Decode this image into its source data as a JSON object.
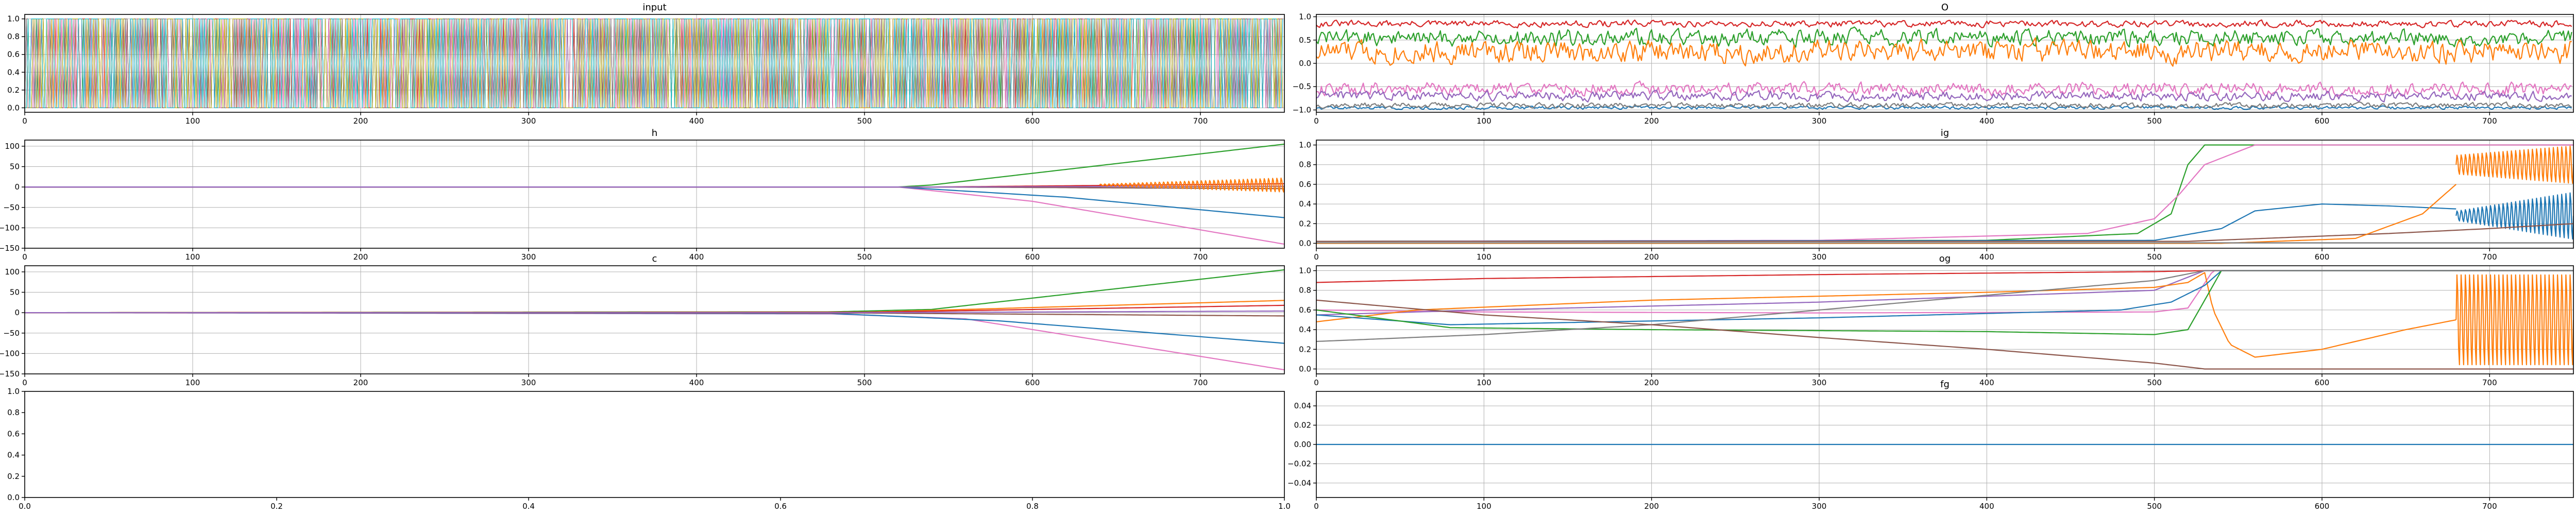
{
  "figure": {
    "background": "#ffffff",
    "series_colors": [
      "#1f77b4",
      "#ff7f0e",
      "#2ca02c",
      "#d62728",
      "#9467bd",
      "#8c564b",
      "#e377c2",
      "#7f7f7f",
      "#bcbd22",
      "#17becf"
    ]
  },
  "chart_data": [
    {
      "id": "input",
      "type": "line",
      "title": "input",
      "xlabel": "",
      "ylabel": "",
      "xlim": [
        0,
        750
      ],
      "ylim": [
        -0.05,
        1.05
      ],
      "xticks": [
        0,
        100,
        200,
        300,
        400,
        500,
        600,
        700
      ],
      "yticks": [
        0.0,
        0.2,
        0.4,
        0.6,
        0.8,
        1.0
      ],
      "xtick_labels": [
        "0",
        "100",
        "200",
        "300",
        "400",
        "500",
        "600",
        "700"
      ],
      "ytick_labels": [
        "0.0",
        "0.2",
        "0.4",
        "0.6",
        "0.8",
        "1.0"
      ],
      "grid": true,
      "series": [
        {
          "kind": "binary",
          "color": "#1f77b4",
          "seed": 11,
          "n": 750
        },
        {
          "kind": "binary",
          "color": "#ff7f0e",
          "seed": 12,
          "n": 750
        },
        {
          "kind": "binary",
          "color": "#2ca02c",
          "seed": 13,
          "n": 750
        },
        {
          "kind": "binary",
          "color": "#d62728",
          "seed": 14,
          "n": 750
        },
        {
          "kind": "binary",
          "color": "#9467bd",
          "seed": 15,
          "n": 750
        },
        {
          "kind": "binary",
          "color": "#8c564b",
          "seed": 16,
          "n": 750
        },
        {
          "kind": "binary",
          "color": "#e377c2",
          "seed": 17,
          "n": 750
        },
        {
          "kind": "binary",
          "color": "#7f7f7f",
          "seed": 18,
          "n": 750
        },
        {
          "kind": "binary",
          "color": "#bcbd22",
          "seed": 19,
          "n": 750
        },
        {
          "kind": "binary",
          "color": "#17becf",
          "seed": 20,
          "n": 750
        }
      ]
    },
    {
      "id": "O",
      "type": "line",
      "title": "O",
      "xlabel": "",
      "ylabel": "",
      "xlim": [
        0,
        750
      ],
      "ylim": [
        -1.05,
        1.05
      ],
      "xticks": [
        0,
        100,
        200,
        300,
        400,
        500,
        600,
        700
      ],
      "yticks": [
        -1.0,
        -0.5,
        0.0,
        0.5,
        1.0
      ],
      "xtick_labels": [
        "0",
        "100",
        "200",
        "300",
        "400",
        "500",
        "600",
        "700"
      ],
      "ytick_labels": [
        "−1.0",
        "−0.5",
        "0.0",
        "0.5",
        "1.0"
      ],
      "grid": true,
      "series": [
        {
          "kind": "noise",
          "color": "#d62728",
          "base": 0.85,
          "amp": 0.1,
          "seed": 31,
          "n": 750
        },
        {
          "kind": "noise",
          "color": "#2ca02c",
          "base": 0.55,
          "amp": 0.25,
          "seed": 32,
          "n": 750
        },
        {
          "kind": "noise",
          "color": "#ff7f0e",
          "base": 0.25,
          "amp": 0.35,
          "seed": 33,
          "n": 750
        },
        {
          "kind": "noise",
          "color": "#e377c2",
          "base": -0.55,
          "amp": 0.2,
          "seed": 34,
          "n": 750
        },
        {
          "kind": "noise",
          "color": "#9467bd",
          "base": -0.7,
          "amp": 0.15,
          "seed": 35,
          "n": 750
        },
        {
          "kind": "noise",
          "color": "#1f77b4",
          "base": -0.95,
          "amp": 0.05,
          "seed": 36,
          "n": 750
        },
        {
          "kind": "noise",
          "color": "#7f7f7f",
          "base": -0.9,
          "amp": 0.08,
          "seed": 37,
          "n": 750
        }
      ]
    },
    {
      "id": "h",
      "type": "line",
      "title": "h",
      "xlabel": "",
      "ylabel": "",
      "xlim": [
        0,
        750
      ],
      "ylim": [
        -150,
        115
      ],
      "xticks": [
        0,
        100,
        200,
        300,
        400,
        500,
        600,
        700
      ],
      "yticks": [
        -150,
        -100,
        -50,
        0,
        50,
        100
      ],
      "xtick_labels": [
        "0",
        "100",
        "200",
        "300",
        "400",
        "500",
        "600",
        "700"
      ],
      "ytick_labels": [
        "−150",
        "−100",
        "−50",
        "0",
        "50",
        "100"
      ],
      "grid": true,
      "series": [
        {
          "kind": "ramp",
          "color": "#2ca02c",
          "x": [
            0,
            520,
            540,
            750
          ],
          "y": [
            0,
            0,
            5,
            105
          ]
        },
        {
          "kind": "ramp",
          "color": "#e377c2",
          "x": [
            0,
            520,
            600,
            750
          ],
          "y": [
            0,
            0,
            -35,
            -140
          ]
        },
        {
          "kind": "ramp",
          "color": "#1f77b4",
          "x": [
            0,
            520,
            620,
            750
          ],
          "y": [
            0,
            0,
            -25,
            -75
          ]
        },
        {
          "kind": "ramp",
          "color": "#d62728",
          "x": [
            0,
            540,
            750
          ],
          "y": [
            0,
            0,
            8
          ]
        },
        {
          "kind": "ramp",
          "color": "#8c564b",
          "x": [
            0,
            540,
            750
          ],
          "y": [
            0,
            0,
            -4
          ]
        },
        {
          "kind": "ramp",
          "color": "#9467bd",
          "x": [
            0,
            540,
            750
          ],
          "y": [
            0,
            0,
            2
          ]
        },
        {
          "kind": "osc",
          "color": "#ff7f0e",
          "start": 640,
          "end": 750,
          "base": 5,
          "amp_start": 2,
          "amp_end": 18,
          "period": 2.5
        }
      ]
    },
    {
      "id": "ig",
      "type": "line",
      "title": "ig",
      "xlabel": "",
      "ylabel": "",
      "xlim": [
        0,
        750
      ],
      "ylim": [
        -0.05,
        1.05
      ],
      "xticks": [
        0,
        100,
        200,
        300,
        400,
        500,
        600,
        700
      ],
      "yticks": [
        0.0,
        0.2,
        0.4,
        0.6,
        0.8,
        1.0
      ],
      "xtick_labels": [
        "0",
        "100",
        "200",
        "300",
        "400",
        "500",
        "600",
        "700"
      ],
      "ytick_labels": [
        "0.0",
        "0.2",
        "0.4",
        "0.6",
        "0.8",
        "1.0"
      ],
      "grid": true,
      "series": [
        {
          "kind": "ramp",
          "color": "#2ca02c",
          "x": [
            0,
            400,
            490,
            510,
            520,
            530,
            750
          ],
          "y": [
            0.02,
            0.03,
            0.1,
            0.3,
            0.8,
            1.0,
            1.0
          ]
        },
        {
          "kind": "ramp",
          "color": "#e377c2",
          "x": [
            0,
            300,
            460,
            500,
            515,
            530,
            560,
            750
          ],
          "y": [
            0.02,
            0.03,
            0.1,
            0.25,
            0.5,
            0.8,
            1.0,
            1.0
          ]
        },
        {
          "kind": "ramp",
          "color": "#1f77b4",
          "x": [
            0,
            500,
            540,
            560,
            600,
            640,
            680
          ],
          "y": [
            0.02,
            0.03,
            0.15,
            0.33,
            0.4,
            0.38,
            0.35
          ]
        },
        {
          "kind": "osc",
          "color": "#1f77b4",
          "start": 680,
          "end": 750,
          "base": 0.28,
          "amp_start": 0.05,
          "amp_end": 0.25,
          "period": 2.5
        },
        {
          "kind": "ramp",
          "color": "#8c564b",
          "x": [
            0,
            520,
            580,
            640,
            700,
            750
          ],
          "y": [
            0.02,
            0.02,
            0.06,
            0.1,
            0.15,
            0.2
          ]
        },
        {
          "kind": "ramp",
          "color": "#ff7f0e",
          "x": [
            0,
            540,
            620,
            660,
            680
          ],
          "y": [
            0.0,
            0.0,
            0.05,
            0.3,
            0.6
          ]
        },
        {
          "kind": "osc",
          "color": "#ff7f0e",
          "start": 680,
          "end": 750,
          "base": 0.8,
          "amp_start": 0.1,
          "amp_end": 0.2,
          "period": 2.5
        },
        {
          "kind": "ramp",
          "color": "#7f7f7f",
          "x": [
            0,
            750
          ],
          "y": [
            0.005,
            0.005
          ]
        }
      ]
    },
    {
      "id": "c",
      "type": "line",
      "title": "c",
      "xlabel": "",
      "ylabel": "",
      "xlim": [
        0,
        750
      ],
      "ylim": [
        -150,
        115
      ],
      "xticks": [
        0,
        100,
        200,
        300,
        400,
        500,
        600,
        700
      ],
      "yticks": [
        -150,
        -100,
        -50,
        0,
        50,
        100
      ],
      "xtick_labels": [
        "0",
        "100",
        "200",
        "300",
        "400",
        "500",
        "600",
        "700"
      ],
      "ytick_labels": [
        "−150",
        "−100",
        "−50",
        "0",
        "50",
        "100"
      ],
      "grid": true,
      "series": [
        {
          "kind": "ramp",
          "color": "#2ca02c",
          "x": [
            0,
            480,
            540,
            750
          ],
          "y": [
            0,
            2,
            8,
            105
          ]
        },
        {
          "kind": "ramp",
          "color": "#e377c2",
          "x": [
            0,
            480,
            560,
            750
          ],
          "y": [
            0,
            -3,
            -15,
            -140
          ]
        },
        {
          "kind": "ramp",
          "color": "#1f77b4",
          "x": [
            0,
            480,
            580,
            750
          ],
          "y": [
            0,
            -2,
            -20,
            -75
          ]
        },
        {
          "kind": "ramp",
          "color": "#ff7f0e",
          "x": [
            0,
            500,
            750
          ],
          "y": [
            0,
            1,
            30
          ]
        },
        {
          "kind": "ramp",
          "color": "#d62728",
          "x": [
            0,
            500,
            750
          ],
          "y": [
            0,
            1,
            18
          ]
        },
        {
          "kind": "ramp",
          "color": "#8c564b",
          "x": [
            0,
            500,
            750
          ],
          "y": [
            0,
            -1,
            -8
          ]
        },
        {
          "kind": "ramp",
          "color": "#9467bd",
          "x": [
            0,
            500,
            750
          ],
          "y": [
            0,
            0,
            4
          ]
        }
      ]
    },
    {
      "id": "og",
      "type": "line",
      "title": "og",
      "xlabel": "",
      "ylabel": "",
      "xlim": [
        0,
        750
      ],
      "ylim": [
        -0.05,
        1.05
      ],
      "xticks": [
        0,
        100,
        200,
        300,
        400,
        500,
        600,
        700
      ],
      "yticks": [
        0.0,
        0.2,
        0.4,
        0.6,
        0.8,
        1.0
      ],
      "xtick_labels": [
        "0",
        "100",
        "200",
        "300",
        "400",
        "500",
        "600",
        "700"
      ],
      "ytick_labels": [
        "0.0",
        "0.2",
        "0.4",
        "0.6",
        "0.8",
        "1.0"
      ],
      "grid": true,
      "series": [
        {
          "kind": "ramp",
          "color": "#d62728",
          "x": [
            0,
            100,
            300,
            500,
            530,
            750
          ],
          "y": [
            0.88,
            0.92,
            0.96,
            0.99,
            1.0,
            1.0
          ]
        },
        {
          "kind": "ramp",
          "color": "#e377c2",
          "x": [
            0,
            100,
            300,
            500,
            520,
            535,
            750
          ],
          "y": [
            0.6,
            0.58,
            0.57,
            0.58,
            0.62,
            1.0,
            1.0
          ]
        },
        {
          "kind": "ramp",
          "color": "#9467bd",
          "x": [
            0,
            100,
            300,
            500,
            530,
            750
          ],
          "y": [
            0.55,
            0.6,
            0.68,
            0.8,
            1.0,
            1.0
          ]
        },
        {
          "kind": "ramp",
          "color": "#ff7f0e",
          "x": [
            0,
            60,
            200,
            400,
            500,
            520,
            530,
            535,
            545,
            560,
            600,
            650,
            680
          ],
          "y": [
            0.48,
            0.6,
            0.7,
            0.78,
            0.83,
            0.88,
            0.98,
            0.6,
            0.25,
            0.12,
            0.2,
            0.4,
            0.5
          ]
        },
        {
          "kind": "osc",
          "color": "#ff7f0e",
          "start": 680,
          "end": 750,
          "base": 0.5,
          "amp_start": 0.48,
          "amp_end": 0.48,
          "period": 2.5
        },
        {
          "kind": "ramp",
          "color": "#1f77b4",
          "x": [
            0,
            80,
            300,
            480,
            510,
            530,
            540,
            750
          ],
          "y": [
            0.55,
            0.45,
            0.52,
            0.6,
            0.68,
            0.85,
            1.0,
            1.0
          ]
        },
        {
          "kind": "ramp",
          "color": "#2ca02c",
          "x": [
            0,
            80,
            200,
            400,
            500,
            520,
            530,
            540,
            750
          ],
          "y": [
            0.6,
            0.42,
            0.4,
            0.38,
            0.35,
            0.4,
            0.7,
            1.0,
            1.0
          ]
        },
        {
          "kind": "ramp",
          "color": "#7f7f7f",
          "x": [
            0,
            100,
            200,
            300,
            400,
            500,
            530,
            750
          ],
          "y": [
            0.28,
            0.35,
            0.45,
            0.6,
            0.75,
            0.9,
            1.0,
            1.0
          ]
        },
        {
          "kind": "ramp",
          "color": "#8c564b",
          "x": [
            0,
            100,
            200,
            300,
            400,
            500,
            530,
            750
          ],
          "y": [
            0.7,
            0.55,
            0.45,
            0.32,
            0.2,
            0.06,
            0.0,
            0.0
          ]
        }
      ]
    },
    {
      "id": "empty",
      "type": "line",
      "title": "",
      "xlabel": "",
      "ylabel": "",
      "xlim": [
        0,
        1
      ],
      "ylim": [
        0,
        1
      ],
      "xticks": [
        0.0,
        0.2,
        0.4,
        0.6,
        0.8,
        1.0
      ],
      "yticks": [
        0.0,
        0.2,
        0.4,
        0.6,
        0.8,
        1.0
      ],
      "xtick_labels": [
        "0.0",
        "0.2",
        "0.4",
        "0.6",
        "0.8",
        "1.0"
      ],
      "ytick_labels": [
        "0.0",
        "0.2",
        "0.4",
        "0.6",
        "0.8",
        "1.0"
      ],
      "grid": false,
      "series": []
    },
    {
      "id": "fg",
      "type": "line",
      "title": "fg",
      "xlabel": "",
      "ylabel": "",
      "xlim": [
        0,
        750
      ],
      "ylim": [
        -0.055,
        0.055
      ],
      "xticks": [
        0,
        100,
        200,
        300,
        400,
        500,
        600,
        700
      ],
      "yticks": [
        -0.04,
        -0.02,
        0.0,
        0.02,
        0.04
      ],
      "xtick_labels": [
        "0",
        "100",
        "200",
        "300",
        "400",
        "500",
        "600",
        "700"
      ],
      "ytick_labels": [
        "−0.04",
        "−0.02",
        "0.00",
        "0.02",
        "0.04"
      ],
      "grid": true,
      "series": [
        {
          "kind": "ramp",
          "color": "#1f77b4",
          "x": [
            0,
            750
          ],
          "y": [
            0,
            0
          ]
        }
      ]
    }
  ]
}
